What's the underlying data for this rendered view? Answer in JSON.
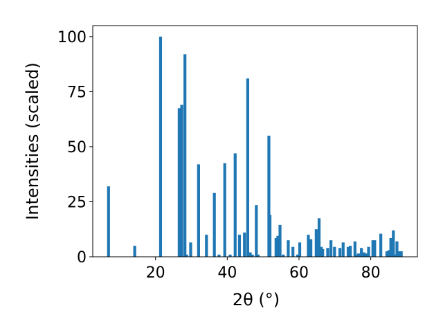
{
  "chart_data": {
    "type": "bar",
    "xlabel": "2θ (°)",
    "ylabel": "Intensities (scaled)",
    "xlim": [
      2.5,
      93
    ],
    "ylim": [
      0,
      105
    ],
    "xticks": [
      20,
      40,
      60,
      80
    ],
    "yticks": [
      0,
      25,
      50,
      75,
      100
    ],
    "bar_color": "#1f77b4",
    "grid": false,
    "x": [
      6.9,
      14.2,
      21.4,
      26.6,
      27.3,
      28.2,
      28.7,
      29.8,
      32.0,
      34.2,
      36.4,
      37.7,
      39.3,
      40.8,
      42.2,
      43.4,
      44.8,
      45.7,
      46.4,
      47.0,
      48.1,
      48.6,
      51.6,
      51.9,
      53.6,
      54.1,
      54.7,
      55.6,
      57.0,
      58.3,
      59.6,
      60.2,
      62.6,
      63.3,
      64.8,
      65.6,
      66.2,
      66.6,
      68.0,
      68.9,
      69.9,
      71.4,
      72.3,
      73.7,
      74.3,
      75.6,
      76.4,
      76.6,
      77.4,
      78.1,
      78.6,
      79.4,
      80.6,
      81.1,
      82.8,
      84.5,
      85.1,
      85.6,
      86.3,
      86.8,
      87.3,
      87.8,
      88.5
    ],
    "values": [
      32.0,
      5.0,
      100.0,
      67.5,
      69.0,
      92.0,
      1.0,
      6.5,
      42.0,
      10.0,
      29.0,
      1.0,
      42.5,
      1.0,
      47.0,
      10.0,
      11.0,
      81.0,
      2.0,
      1.0,
      23.5,
      1.0,
      55.0,
      19.0,
      8.5,
      9.5,
      14.5,
      1.0,
      7.5,
      4.5,
      1.0,
      6.5,
      10.0,
      8.0,
      12.5,
      17.5,
      4.5,
      3.5,
      4.0,
      7.5,
      4.5,
      4.0,
      6.5,
      4.5,
      5.0,
      7.0,
      1.0,
      1.5,
      4.0,
      2.0,
      1.5,
      4.5,
      7.5,
      7.5,
      10.5,
      2.5,
      3.0,
      8.5,
      12.0,
      1.0,
      7.0,
      2.5,
      2.5
    ]
  }
}
